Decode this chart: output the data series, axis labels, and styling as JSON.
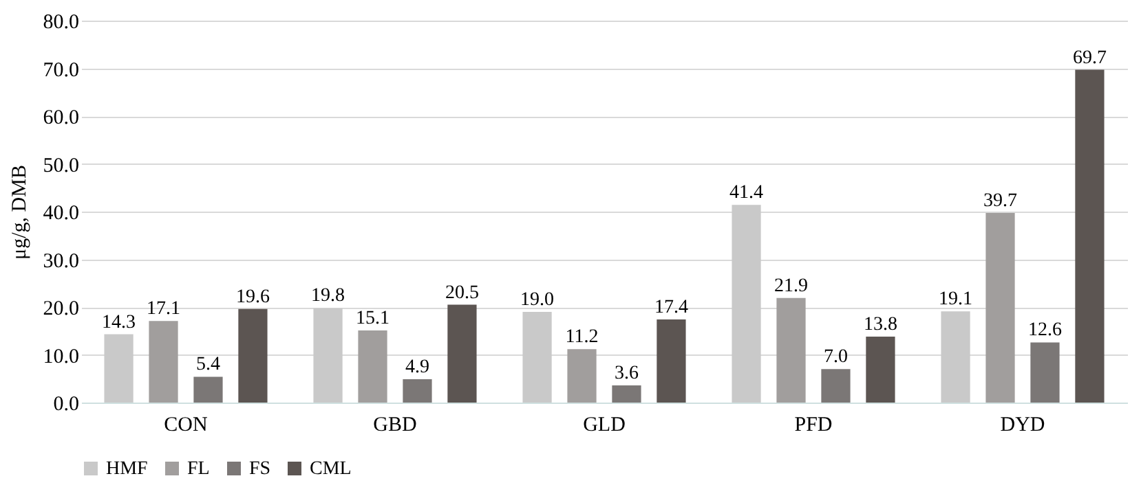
{
  "chart_data": {
    "type": "bar",
    "ylabel": "μg/g, DMB",
    "categories": [
      "CON",
      "GBD",
      "GLD",
      "PFD",
      "DYD"
    ],
    "series": [
      {
        "name": "HMF",
        "color": "#c9c9c9",
        "values": [
          14.3,
          19.8,
          19.0,
          41.4,
          19.1
        ],
        "value_labels": [
          "14.3",
          "19.8",
          "19.0",
          "41.4",
          "19.1"
        ]
      },
      {
        "name": "FL",
        "color": "#a19e9d",
        "values": [
          17.1,
          15.1,
          11.2,
          21.9,
          39.7
        ],
        "value_labels": [
          "17.1",
          "15.1",
          "11.2",
          "21.9",
          "39.7"
        ]
      },
      {
        "name": "FS",
        "color": "#7b7776",
        "values": [
          5.4,
          4.9,
          3.6,
          7.0,
          12.6
        ],
        "value_labels": [
          "5.4",
          "4.9",
          "3.6",
          "7.0",
          "12.6"
        ]
      },
      {
        "name": "CML",
        "color": "#5c5552",
        "values": [
          19.6,
          20.5,
          17.4,
          13.8,
          69.7
        ],
        "value_labels": [
          "19.6",
          "20.5",
          "17.4",
          "13.8",
          "69.7"
        ]
      }
    ],
    "ylim": [
      0,
      80
    ],
    "yticks": [
      {
        "value": 0,
        "label": "0.0"
      },
      {
        "value": 10,
        "label": "10.0"
      },
      {
        "value": 20,
        "label": "20.0"
      },
      {
        "value": 30,
        "label": "30.0"
      },
      {
        "value": 40,
        "label": "40.0"
      },
      {
        "value": 50,
        "label": "50.0"
      },
      {
        "value": 60,
        "label": "60.0"
      },
      {
        "value": 70,
        "label": "70.0"
      },
      {
        "value": 80,
        "label": "80.0"
      }
    ],
    "grid": "y",
    "legend": "bottom"
  }
}
